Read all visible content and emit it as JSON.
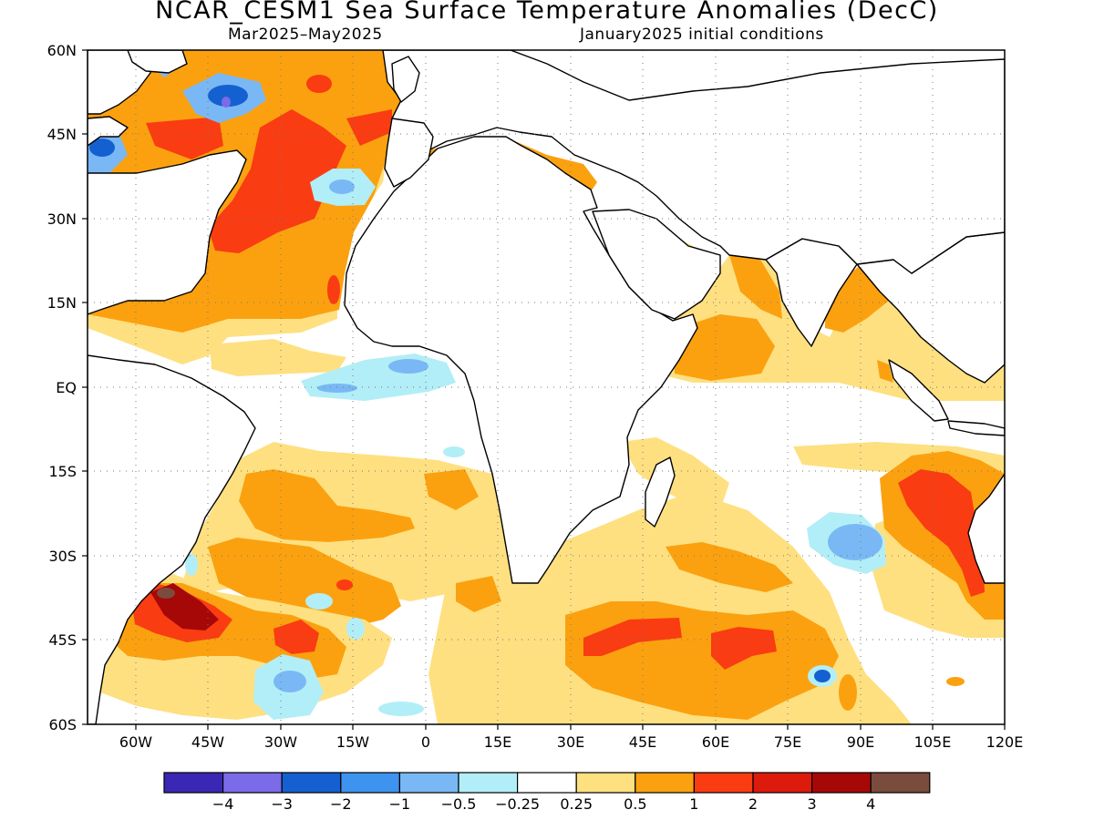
{
  "title": "NCAR_CESM1 Sea Surface Temperature Anomalies (DecC)",
  "subtitle_left": "Mar2025–May2025",
  "subtitle_right": "January2025 initial conditions",
  "map": {
    "lon_range": [
      -70,
      120
    ],
    "lat_range": [
      -60,
      60
    ],
    "lon_ticks": [
      "60W",
      "45W",
      "30W",
      "15W",
      "0",
      "15E",
      "30E",
      "45E",
      "60E",
      "75E",
      "90E",
      "105E",
      "120E"
    ],
    "lat_ticks": [
      "60N",
      "45N",
      "30N",
      "15N",
      "EQ",
      "15S",
      "30S",
      "45S",
      "60S"
    ],
    "gridlines": "dotted",
    "anomaly_regions": [
      {
        "name": "north-atlantic-warm",
        "level": "0.5-1",
        "color": "#fba10f"
      },
      {
        "name": "gulf-stream-hot",
        "level": "1-2",
        "color": "#fa3c12"
      },
      {
        "name": "mediterranean-warm",
        "level": "0.5-1",
        "color": "#fba10f"
      },
      {
        "name": "equatorial-atlantic-cool",
        "level": "-1 to -0.25",
        "color": "#7ab8f5"
      },
      {
        "name": "indian-ocean-warm",
        "level": "0.5-1",
        "color": "#fba10f"
      },
      {
        "name": "west-australia-hot",
        "level": "1-2",
        "color": "#fa3c12"
      },
      {
        "name": "south-atlantic-hot",
        "level": "2-4",
        "color": "#a60808"
      },
      {
        "name": "southern-indian-hot",
        "level": "1-2",
        "color": "#fa3c12"
      }
    ]
  },
  "colorbar": {
    "colors": [
      "#3a27b3",
      "#7b6be8",
      "#1560d0",
      "#3e93ee",
      "#7ab8f5",
      "#b2eef7",
      "#ffffff",
      "#fee081",
      "#fba10f",
      "#fa3c12",
      "#dc1b0c",
      "#a60808",
      "#7a4c3e"
    ],
    "labels": [
      "−4",
      "−3",
      "−2",
      "−1",
      "−0.5",
      "−0.25",
      "0.25",
      "0.5",
      "1",
      "2",
      "3",
      "4"
    ]
  }
}
